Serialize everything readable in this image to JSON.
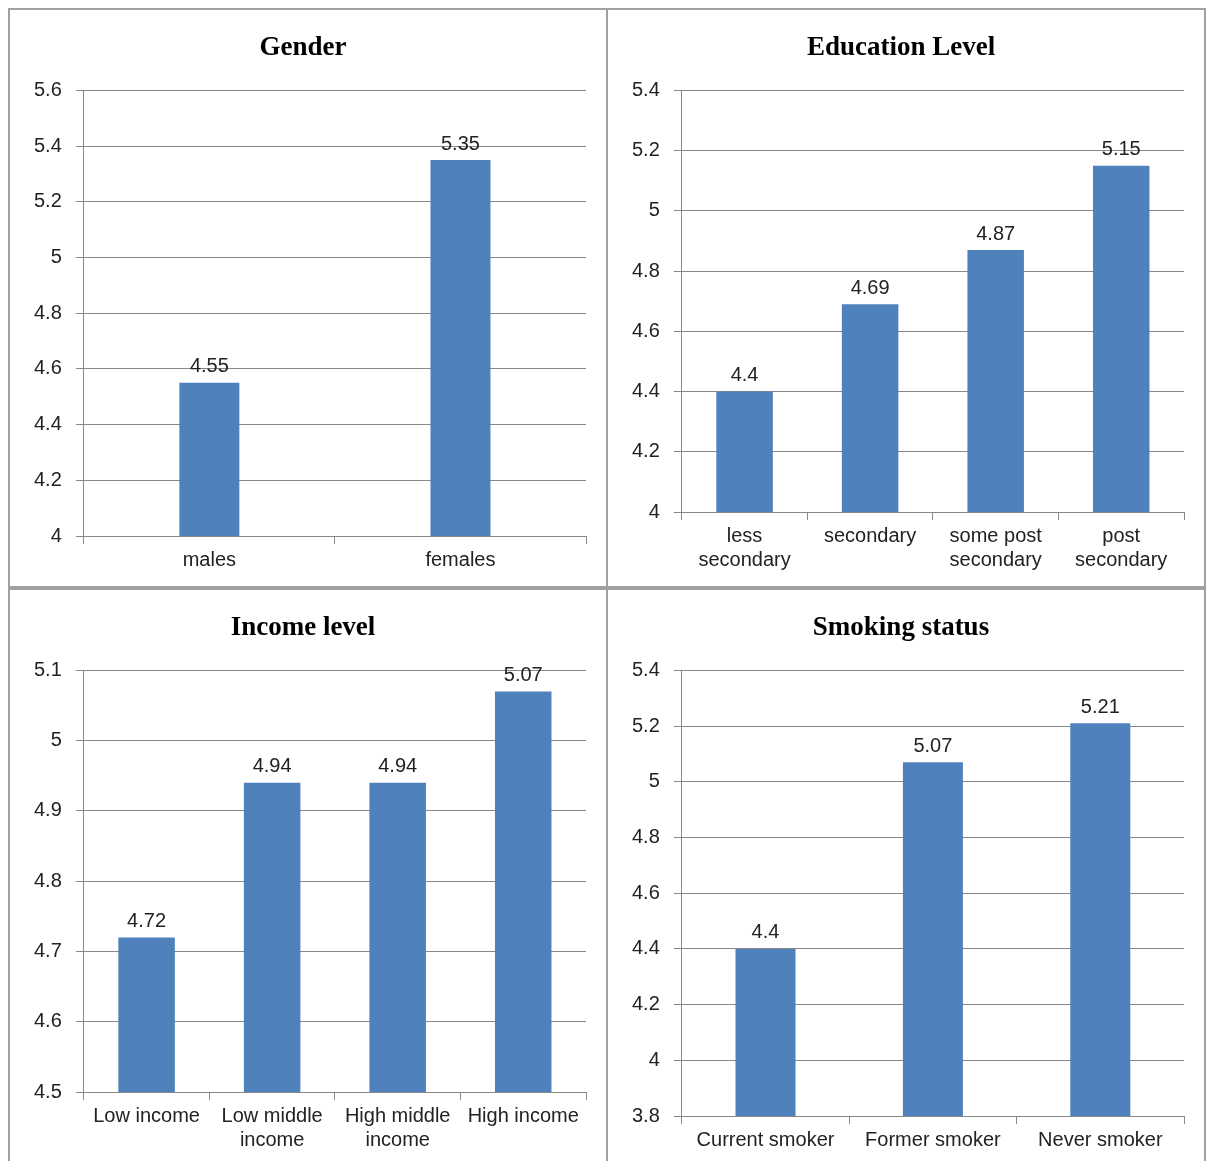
{
  "chart_data": [
    {
      "type": "bar",
      "title": "Gender",
      "categories": [
        "males",
        "females"
      ],
      "values": [
        4.55,
        5.35
      ],
      "color": "#4f81bd",
      "ylim": [
        4,
        5.6
      ],
      "yticks": [
        4,
        4.2,
        4.4,
        4.6,
        4.8,
        5,
        5.2,
        5.4,
        5.6
      ],
      "grid": "y",
      "data_labels": true
    },
    {
      "type": "bar",
      "title": "Education Level",
      "categories": [
        "less secondary",
        "secondary",
        "some post secondary",
        "post secondary"
      ],
      "values": [
        4.4,
        4.69,
        4.87,
        5.15
      ],
      "color": "#4f81bd",
      "ylim": [
        4,
        5.4
      ],
      "yticks": [
        4,
        4.2,
        4.4,
        4.6,
        4.8,
        5,
        5.2,
        5.4
      ],
      "grid": "y",
      "data_labels": true
    },
    {
      "type": "bar",
      "title": "Income level",
      "categories": [
        "Low income",
        "Low middle income",
        "High middle income",
        "High income"
      ],
      "values": [
        4.72,
        4.94,
        4.94,
        5.07
      ],
      "color": "#4f81bd",
      "ylim": [
        4.5,
        5.1
      ],
      "yticks": [
        4.5,
        4.6,
        4.7,
        4.8,
        4.9,
        5,
        5.1
      ],
      "grid": "y",
      "data_labels": true
    },
    {
      "type": "bar",
      "title": "Smoking status",
      "categories": [
        "Current smoker",
        "Former smoker",
        "Never smoker"
      ],
      "values": [
        4.4,
        5.07,
        5.21
      ],
      "color": "#4f81bd",
      "ylim": [
        3.8,
        5.4
      ],
      "yticks": [
        3.8,
        4,
        4.2,
        4.4,
        4.6,
        4.8,
        5,
        5.2,
        5.4
      ],
      "grid": "y",
      "data_labels": true
    }
  ]
}
